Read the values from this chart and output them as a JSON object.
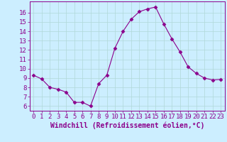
{
  "x": [
    0,
    1,
    2,
    3,
    4,
    5,
    6,
    7,
    8,
    9,
    10,
    11,
    12,
    13,
    14,
    15,
    16,
    17,
    18,
    19,
    20,
    21,
    22,
    23
  ],
  "y": [
    9.3,
    8.9,
    8.0,
    7.8,
    7.5,
    6.4,
    6.4,
    6.0,
    8.4,
    9.3,
    12.2,
    14.0,
    15.3,
    16.1,
    16.4,
    16.6,
    14.8,
    13.2,
    11.8,
    10.2,
    9.5,
    9.0,
    8.8,
    8.85
  ],
  "line_color": "#8b008b",
  "marker": "D",
  "marker_size": 2.5,
  "xlabel": "Windchill (Refroidissement éolien,°C)",
  "ylabel_ticks": [
    6,
    7,
    8,
    9,
    10,
    11,
    12,
    13,
    14,
    15,
    16
  ],
  "ylim": [
    5.5,
    17.2
  ],
  "xlim": [
    -0.5,
    23.5
  ],
  "background_color": "#cceeff",
  "grid_color": "#b0d8d8",
  "tick_color": "#8b008b",
  "label_color": "#8b008b",
  "font_size": 6.5,
  "xlabel_fontsize": 7
}
